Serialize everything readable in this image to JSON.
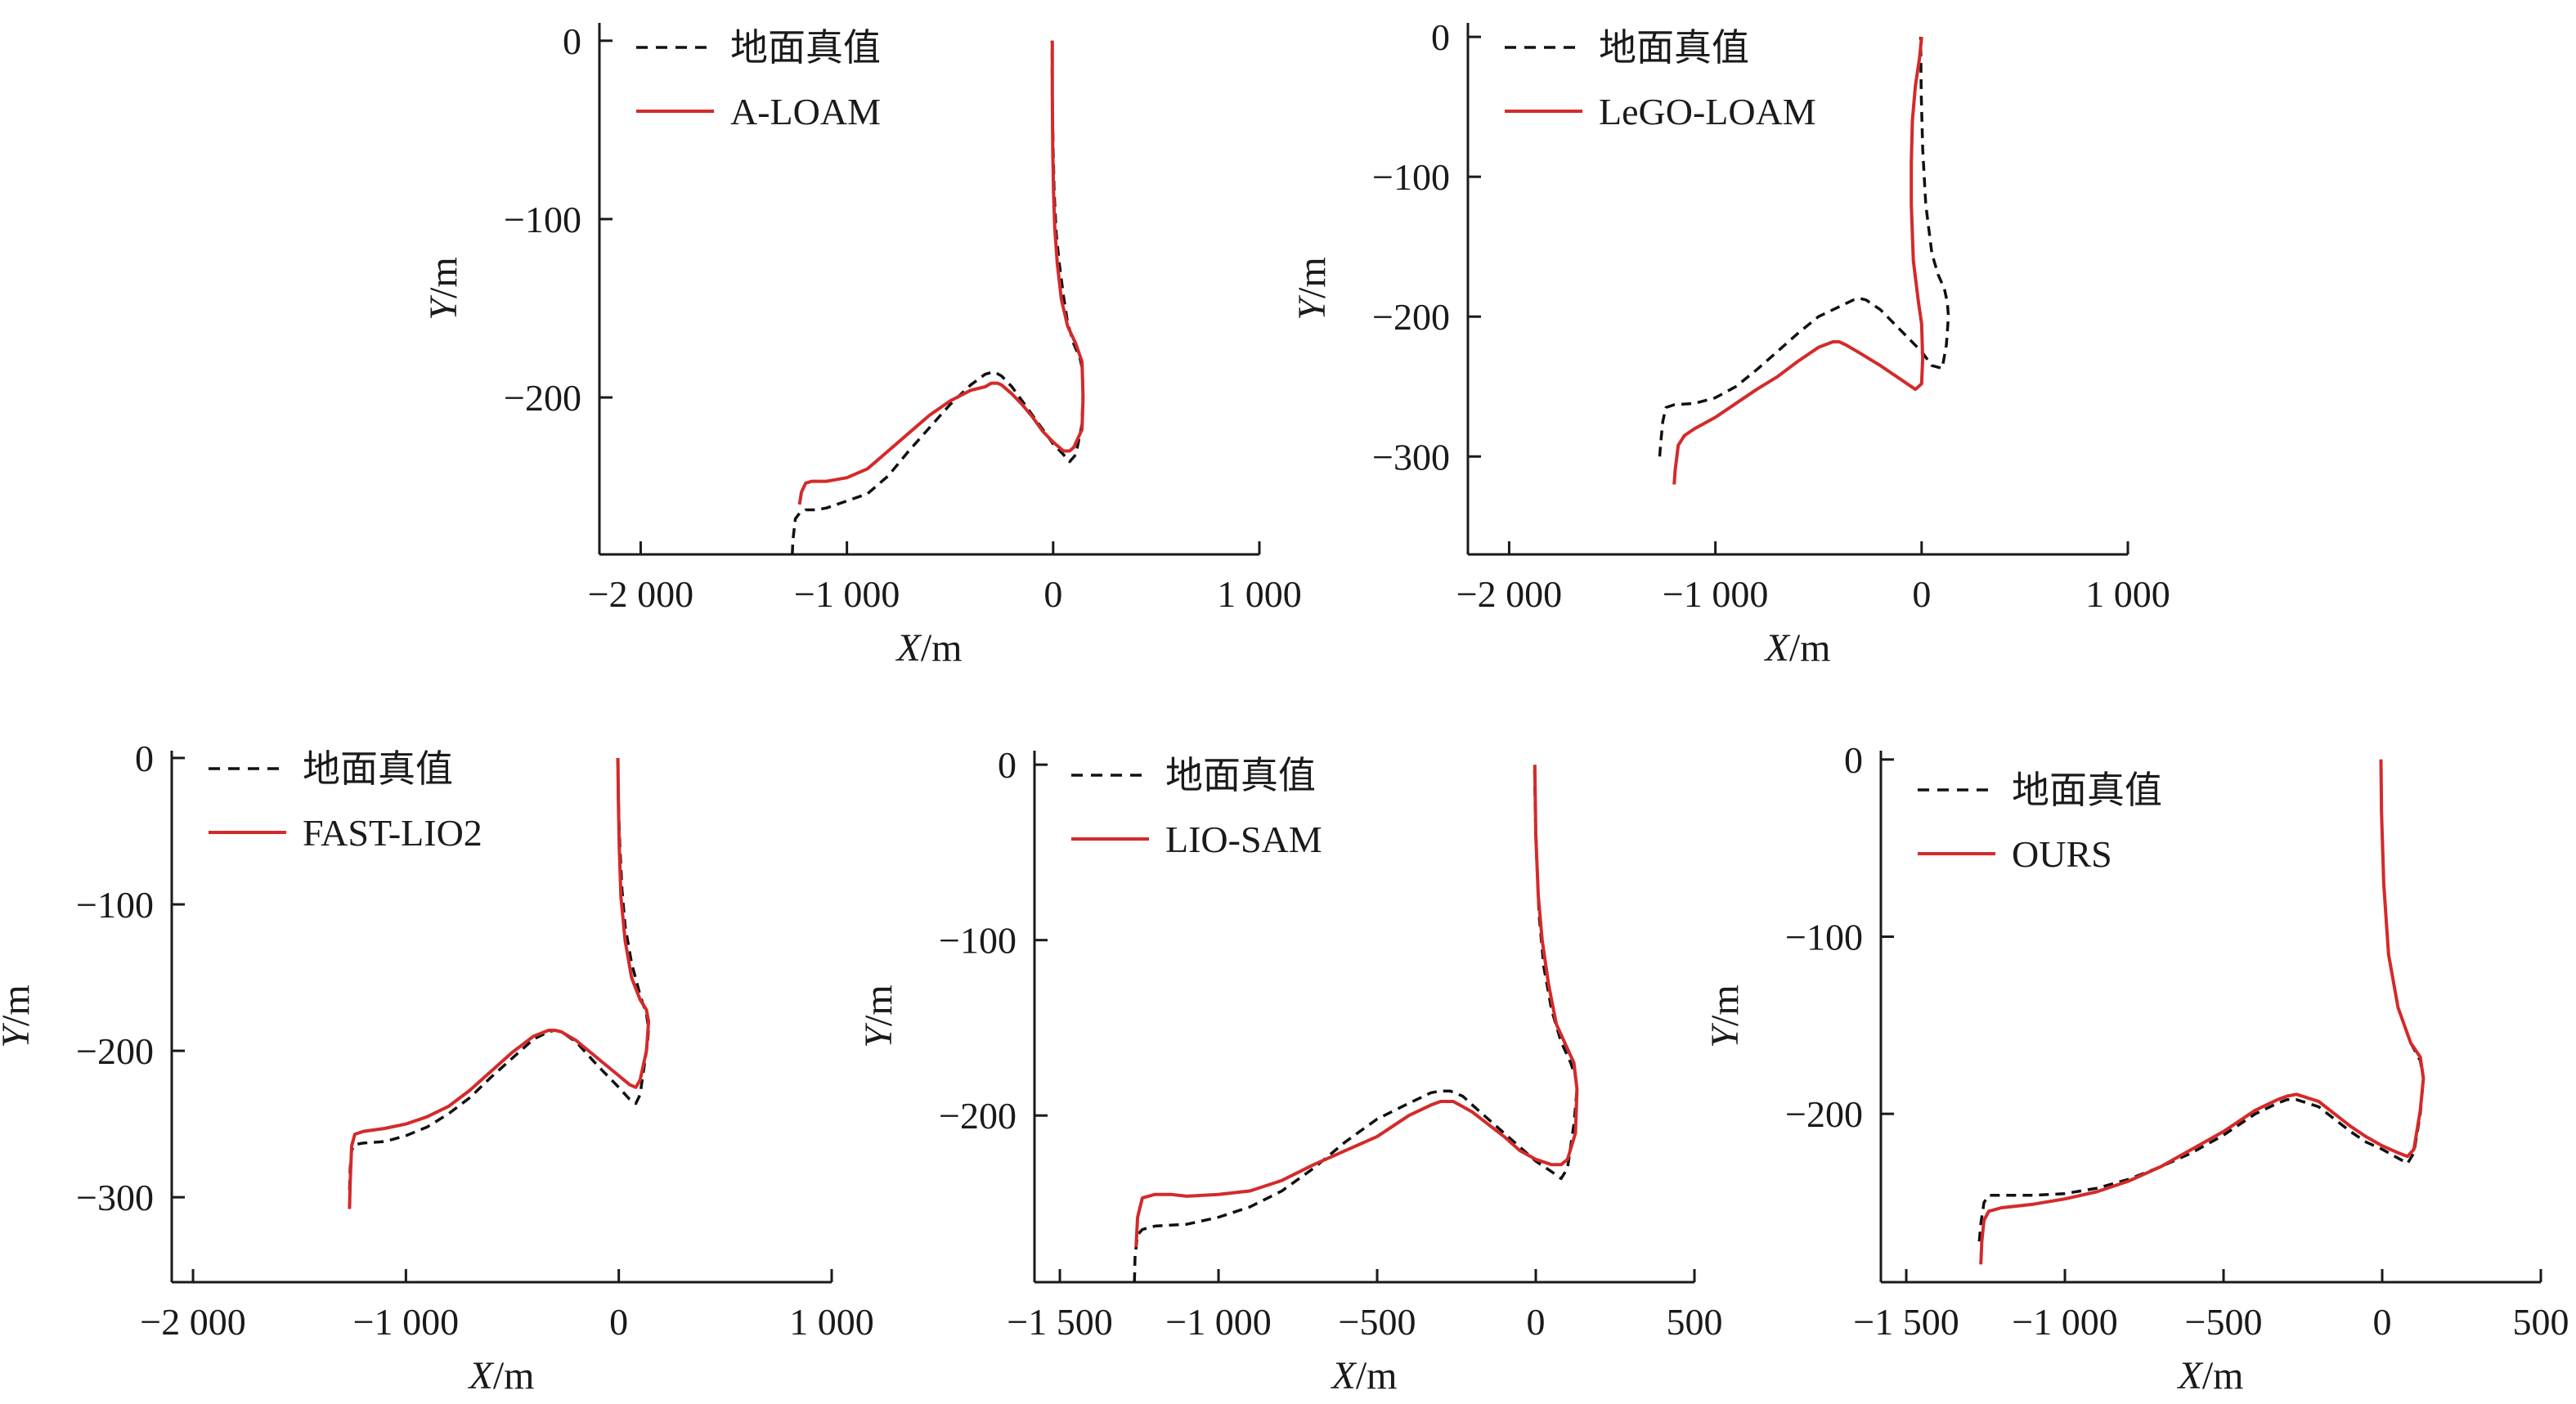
{
  "figure": {
    "panels": [
      {
        "id": "a-loam",
        "xlabel": {
          "var": "X",
          "unit": "/m"
        },
        "ylabel": {
          "var": "Y",
          "unit": "/m"
        },
        "x_ticks": [
          {
            "v": -2000,
            "t": "−2 000"
          },
          {
            "v": -1000,
            "t": "−1 000"
          },
          {
            "v": 0,
            "t": "0"
          },
          {
            "v": 1000,
            "t": "1 000"
          }
        ],
        "y_ticks": [
          {
            "v": 0,
            "t": "0"
          },
          {
            "v": -100,
            "t": "−100"
          },
          {
            "v": -200,
            "t": "−200"
          }
        ],
        "legend": [
          "地面真值",
          "A-LOAM"
        ]
      },
      {
        "id": "lego-loam",
        "xlabel": {
          "var": "X",
          "unit": "/m"
        },
        "ylabel": {
          "var": "Y",
          "unit": "/m"
        },
        "x_ticks": [
          {
            "v": -2000,
            "t": "−2 000"
          },
          {
            "v": -1000,
            "t": "−1 000"
          },
          {
            "v": 0,
            "t": "0"
          },
          {
            "v": 1000,
            "t": "1 000"
          }
        ],
        "y_ticks": [
          {
            "v": 0,
            "t": "0"
          },
          {
            "v": -100,
            "t": "−100"
          },
          {
            "v": -200,
            "t": "−200"
          },
          {
            "v": -300,
            "t": "−300"
          }
        ],
        "legend": [
          "地面真值",
          "LeGO-LOAM"
        ]
      },
      {
        "id": "fast-lio2",
        "xlabel": {
          "var": "X",
          "unit": "/m"
        },
        "ylabel": {
          "var": "Y",
          "unit": "/m"
        },
        "x_ticks": [
          {
            "v": -2000,
            "t": "−2 000"
          },
          {
            "v": -1000,
            "t": "−1 000"
          },
          {
            "v": 0,
            "t": "0"
          },
          {
            "v": 1000,
            "t": "1 000"
          }
        ],
        "y_ticks": [
          {
            "v": 0,
            "t": "0"
          },
          {
            "v": -100,
            "t": "−100"
          },
          {
            "v": -200,
            "t": "−200"
          },
          {
            "v": -300,
            "t": "−300"
          }
        ],
        "legend": [
          "地面真值",
          "FAST-LIO2"
        ]
      },
      {
        "id": "lio-sam",
        "xlabel": {
          "var": "X",
          "unit": "/m"
        },
        "ylabel": {
          "var": "Y",
          "unit": "/m"
        },
        "x_ticks": [
          {
            "v": -1500,
            "t": "−1 500"
          },
          {
            "v": -1000,
            "t": "−1 000"
          },
          {
            "v": -500,
            "t": "−500"
          },
          {
            "v": 0,
            "t": "0"
          },
          {
            "v": 500,
            "t": "500"
          }
        ],
        "y_ticks": [
          {
            "v": 0,
            "t": "0"
          },
          {
            "v": -100,
            "t": "−100"
          },
          {
            "v": -200,
            "t": "−200"
          }
        ],
        "legend": [
          "地面真值",
          "LIO-SAM"
        ]
      },
      {
        "id": "ours",
        "xlabel": {
          "var": "X",
          "unit": "/m"
        },
        "ylabel": {
          "var": "Y",
          "unit": "/m"
        },
        "x_ticks": [
          {
            "v": -1500,
            "t": "−1 500"
          },
          {
            "v": -1000,
            "t": "−1 000"
          },
          {
            "v": -500,
            "t": "−500"
          },
          {
            "v": 0,
            "t": "0"
          },
          {
            "v": 500,
            "t": "500"
          }
        ],
        "y_ticks": [
          {
            "v": 0,
            "t": "0"
          },
          {
            "v": -100,
            "t": "−100"
          },
          {
            "v": -200,
            "t": "−200"
          }
        ],
        "legend": [
          "地面真值",
          "OURS"
        ]
      }
    ]
  },
  "chart_data": [
    {
      "type": "line",
      "xlim": [
        -2200,
        1000
      ],
      "ylim": [
        -288,
        10
      ],
      "series": [
        {
          "name": "地面真值",
          "color": "#111111",
          "style": "dashed",
          "x": [
            -1265,
            -1262,
            -1250,
            -1230,
            -1200,
            -1150,
            -1100,
            -1000,
            -900,
            -800,
            -700,
            -600,
            -500,
            -400,
            -330,
            -300,
            -280,
            -250,
            -200,
            -150,
            -100,
            -50,
            0,
            50,
            80,
            110,
            140,
            145,
            140,
            130,
            100,
            70,
            50,
            30,
            15,
            5,
            0,
            -3,
            -5,
            -5
          ],
          "y": [
            -288,
            -280,
            -268,
            -265,
            -263,
            -263,
            -262,
            -258,
            -254,
            -244,
            -230,
            -217,
            -204,
            -193,
            -187,
            -186,
            -186,
            -188,
            -194,
            -202,
            -210,
            -218,
            -226,
            -232,
            -236,
            -232,
            -215,
            -195,
            -183,
            -178,
            -170,
            -158,
            -143,
            -125,
            -108,
            -85,
            -60,
            -40,
            -20,
            0
          ]
        },
        {
          "name": "A-LOAM",
          "color": "#d42a2a",
          "style": "solid",
          "x": [
            -1230,
            -1220,
            -1200,
            -1170,
            -1100,
            -1000,
            -900,
            -800,
            -700,
            -600,
            -500,
            -400,
            -330,
            -300,
            -270,
            -250,
            -200,
            -150,
            -100,
            -50,
            0,
            50,
            80,
            100,
            140,
            145,
            140,
            110,
            70,
            40,
            20,
            8,
            2,
            -2,
            -4,
            -4
          ],
          "y": [
            -260,
            -253,
            -248,
            -247,
            -247,
            -245,
            -240,
            -230,
            -220,
            -210,
            -202,
            -196,
            -194,
            -192,
            -192,
            -193,
            -198,
            -204,
            -211,
            -219,
            -225,
            -230,
            -230,
            -228,
            -218,
            -200,
            -180,
            -170,
            -160,
            -145,
            -125,
            -105,
            -85,
            -60,
            -30,
            0
          ]
        }
      ]
    },
    {
      "type": "line",
      "xlim": [
        -2200,
        1000
      ],
      "ylim": [
        -370,
        10
      ],
      "series": [
        {
          "name": "地面真值",
          "color": "#111111",
          "style": "dashed",
          "x": [
            -1270,
            -1265,
            -1255,
            -1240,
            -1200,
            -1100,
            -1000,
            -900,
            -800,
            -700,
            -600,
            -500,
            -400,
            -330,
            -300,
            -270,
            -200,
            -100,
            0,
            50,
            100,
            120,
            130,
            125,
            110,
            80,
            50,
            20,
            5,
            -2,
            -5
          ],
          "y": [
            -300,
            -290,
            -275,
            -265,
            -263,
            -262,
            -258,
            -250,
            -238,
            -225,
            -212,
            -200,
            -193,
            -188,
            -187,
            -188,
            -195,
            -210,
            -225,
            -235,
            -237,
            -220,
            -200,
            -190,
            -180,
            -170,
            -155,
            -120,
            -80,
            -40,
            0
          ]
        },
        {
          "name": "LeGO-LOAM",
          "color": "#d42a2a",
          "style": "solid",
          "x": [
            -1200,
            -1195,
            -1180,
            -1150,
            -1100,
            -1000,
            -900,
            -800,
            -700,
            -600,
            -500,
            -430,
            -400,
            -370,
            -300,
            -200,
            -100,
            -30,
            0,
            5,
            0,
            -15,
            -40,
            -50,
            -50,
            -45,
            -30,
            -10,
            0
          ],
          "y": [
            -320,
            -310,
            -292,
            -285,
            -280,
            -272,
            -262,
            -252,
            -243,
            -232,
            -222,
            -218,
            -218,
            -220,
            -226,
            -235,
            -245,
            -252,
            -248,
            -230,
            -205,
            -190,
            -160,
            -120,
            -90,
            -60,
            -35,
            -15,
            0
          ]
        }
      ]
    },
    {
      "type": "line",
      "xlim": [
        -2100,
        1000
      ],
      "ylim": [
        -358,
        5
      ],
      "series": [
        {
          "name": "地面真值",
          "color": "#111111",
          "style": "dashed",
          "x": [
            -1265,
            -1262,
            -1255,
            -1240,
            -1200,
            -1100,
            -1000,
            -900,
            -800,
            -700,
            -600,
            -500,
            -400,
            -330,
            -300,
            -270,
            -200,
            -100,
            0,
            50,
            80,
            100,
            120,
            135,
            140,
            130,
            100,
            60,
            30,
            15,
            5,
            0,
            -3,
            -5
          ],
          "y": [
            -295,
            -280,
            -268,
            -264,
            -263,
            -262,
            -258,
            -252,
            -243,
            -232,
            -218,
            -205,
            -192,
            -187,
            -186,
            -187,
            -194,
            -210,
            -225,
            -233,
            -236,
            -230,
            -210,
            -195,
            -185,
            -175,
            -162,
            -140,
            -115,
            -90,
            -60,
            -40,
            -20,
            0
          ]
        },
        {
          "name": "FAST-LIO2",
          "color": "#d42a2a",
          "style": "solid",
          "x": [
            -1265,
            -1262,
            -1255,
            -1240,
            -1200,
            -1100,
            -1000,
            -900,
            -800,
            -700,
            -600,
            -500,
            -400,
            -330,
            -300,
            -270,
            -200,
            -100,
            0,
            50,
            80,
            100,
            130,
            140,
            130,
            100,
            60,
            30,
            10,
            2,
            -2,
            -4
          ],
          "y": [
            -308,
            -290,
            -265,
            -257,
            -255,
            -253,
            -250,
            -245,
            -238,
            -227,
            -214,
            -201,
            -190,
            -186,
            -186,
            -187,
            -193,
            -205,
            -217,
            -223,
            -225,
            -220,
            -200,
            -180,
            -172,
            -165,
            -150,
            -125,
            -95,
            -60,
            -30,
            0
          ]
        }
      ]
    },
    {
      "type": "line",
      "xlim": [
        -1580,
        500
      ],
      "ylim": [
        -295,
        8
      ],
      "series": [
        {
          "name": "地面真值",
          "color": "#111111",
          "style": "dashed",
          "x": [
            -1265,
            -1263,
            -1255,
            -1240,
            -1200,
            -1100,
            -1000,
            -900,
            -800,
            -700,
            -600,
            -500,
            -400,
            -330,
            -300,
            -270,
            -230,
            -200,
            -150,
            -100,
            -50,
            0,
            50,
            80,
            100,
            120,
            130,
            125,
            110,
            80,
            50,
            25,
            10,
            3,
            -2,
            -4
          ],
          "y": [
            -295,
            -280,
            -268,
            -265,
            -263,
            -262,
            -258,
            -252,
            -243,
            -230,
            -215,
            -202,
            -193,
            -187,
            -186,
            -186,
            -189,
            -194,
            -202,
            -210,
            -218,
            -226,
            -232,
            -236,
            -230,
            -205,
            -185,
            -178,
            -170,
            -158,
            -140,
            -115,
            -85,
            -55,
            -25,
            0
          ]
        },
        {
          "name": "LIO-SAM",
          "color": "#d42a2a",
          "style": "solid",
          "x": [
            -1260,
            -1255,
            -1240,
            -1200,
            -1150,
            -1100,
            -1000,
            -900,
            -800,
            -700,
            -600,
            -500,
            -400,
            -330,
            -300,
            -260,
            -200,
            -150,
            -100,
            -50,
            0,
            50,
            80,
            100,
            125,
            130,
            120,
            95,
            65,
            40,
            20,
            8,
            0,
            -3
          ],
          "y": [
            -275,
            -258,
            -247,
            -245,
            -245,
            -246,
            -245,
            -243,
            -237,
            -228,
            -220,
            -212,
            -200,
            -194,
            -192,
            -192,
            -198,
            -205,
            -212,
            -220,
            -225,
            -228,
            -228,
            -225,
            -210,
            -185,
            -170,
            -160,
            -148,
            -125,
            -100,
            -75,
            -40,
            0
          ]
        }
      ]
    },
    {
      "type": "line",
      "xlim": [
        -1580,
        500
      ],
      "ylim": [
        -295,
        5
      ],
      "series": [
        {
          "name": "地面真值",
          "color": "#111111",
          "style": "dashed",
          "x": [
            -1270,
            -1265,
            -1255,
            -1240,
            -1200,
            -1100,
            -1000,
            -900,
            -800,
            -700,
            -600,
            -500,
            -400,
            -330,
            -300,
            -270,
            -200,
            -150,
            -100,
            -50,
            0,
            50,
            80,
            100,
            120,
            130,
            120,
            90,
            50,
            20,
            5,
            -2,
            -4
          ],
          "y": [
            -272,
            -262,
            -250,
            -246,
            -246,
            -246,
            -245,
            -242,
            -237,
            -230,
            -222,
            -212,
            -200,
            -194,
            -192,
            -192,
            -196,
            -203,
            -210,
            -216,
            -220,
            -225,
            -228,
            -222,
            -200,
            -180,
            -170,
            -160,
            -140,
            -110,
            -70,
            -30,
            0
          ]
        },
        {
          "name": "OURS",
          "color": "#d42a2a",
          "style": "solid",
          "x": [
            -1265,
            -1262,
            -1255,
            -1240,
            -1200,
            -1100,
            -1000,
            -900,
            -800,
            -700,
            -600,
            -500,
            -400,
            -330,
            -300,
            -270,
            -200,
            -150,
            -100,
            -50,
            0,
            50,
            80,
            100,
            120,
            130,
            120,
            90,
            50,
            20,
            5,
            -2,
            -4
          ],
          "y": [
            -285,
            -272,
            -260,
            -255,
            -253,
            -251,
            -248,
            -244,
            -238,
            -230,
            -220,
            -210,
            -198,
            -192,
            -190,
            -189,
            -193,
            -200,
            -207,
            -213,
            -218,
            -222,
            -224,
            -220,
            -198,
            -180,
            -168,
            -160,
            -140,
            -110,
            -70,
            -30,
            0
          ]
        }
      ]
    }
  ]
}
